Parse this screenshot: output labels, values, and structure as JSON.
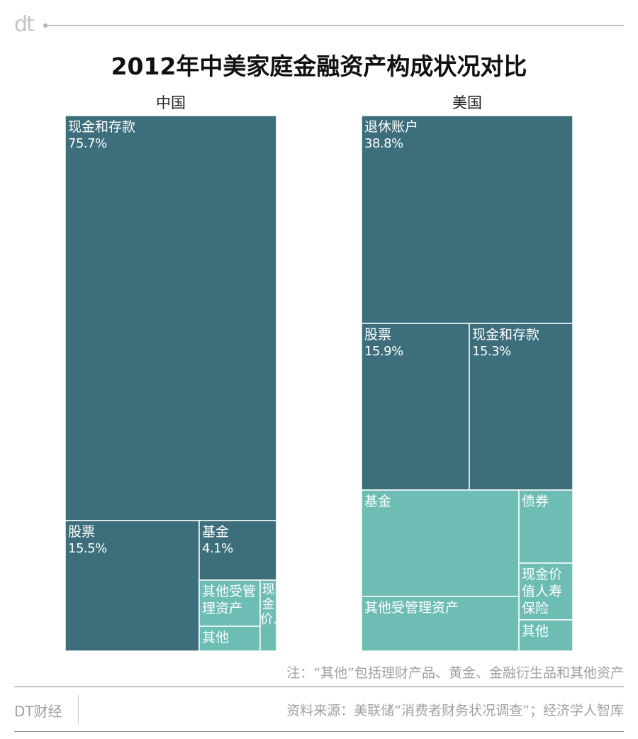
{
  "header": {
    "logo_text": "dt",
    "title": "2012年中美家庭金融资产构成状况对比"
  },
  "colors": {
    "dark": "#3d6e7b",
    "light": "#6dbdb5",
    "border": "#ffffff"
  },
  "chart_data": [
    {
      "type": "treemap",
      "title": "中国",
      "tiles": [
        {
          "name": "现金和存款",
          "value_label": "75.7%",
          "value": 75.7,
          "color": "dark"
        },
        {
          "name": "股票",
          "value_label": "15.5%",
          "value": 15.5,
          "color": "dark"
        },
        {
          "name": "基金",
          "value_label": "4.1%",
          "value": 4.1,
          "color": "dark"
        },
        {
          "name": "其他受管理资产",
          "value_label": "",
          "color": "light"
        },
        {
          "name": "其他",
          "value_label": "",
          "color": "light"
        },
        {
          "name": "现金价…",
          "value_label": "",
          "color": "light"
        }
      ]
    },
    {
      "type": "treemap",
      "title": "美国",
      "tiles": [
        {
          "name": "退休账户",
          "value_label": "38.8%",
          "value": 38.8,
          "color": "dark"
        },
        {
          "name": "股票",
          "value_label": "15.9%",
          "value": 15.9,
          "color": "dark"
        },
        {
          "name": "现金和存款",
          "value_label": "15.3%",
          "value": 15.3,
          "color": "dark"
        },
        {
          "name": "基金",
          "value_label": "",
          "color": "light"
        },
        {
          "name": "债券",
          "value_label": "",
          "color": "light"
        },
        {
          "name": "现金价值人寿保险",
          "value_label": "",
          "color": "light"
        },
        {
          "name": "其他受管理资产",
          "value_label": "",
          "color": "light"
        },
        {
          "name": "其他",
          "value_label": "",
          "color": "light"
        }
      ]
    }
  ],
  "footer": {
    "note": "注：“其他”包括理财产品、黄金、金融衍生品和其他资产",
    "brand": "DT财经",
    "source": "资料来源：美联储“消费者财务状况调查”；经济学人智库"
  }
}
